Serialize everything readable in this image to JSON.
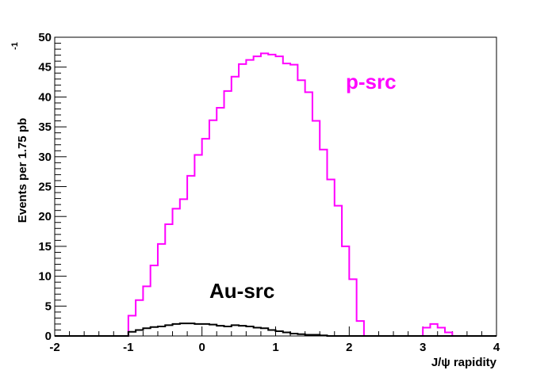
{
  "chart_data": {
    "type": "line",
    "xlabel": "J/ψ rapidity",
    "ylabel": "Events per 1.75 pb",
    "ylabel_superscript": "-1",
    "xlim": [
      -2,
      4
    ],
    "ylim": [
      0,
      50
    ],
    "x_ticks": [
      -2,
      -1,
      0,
      1,
      2,
      3,
      4
    ],
    "y_ticks": [
      0,
      5,
      10,
      15,
      20,
      25,
      30,
      35,
      40,
      45,
      50
    ],
    "bin_width": 0.1,
    "grid": false,
    "series": [
      {
        "name": "p-src",
        "color": "#ff00ff",
        "x_start": -1.0,
        "values": [
          3.4,
          6.0,
          8.3,
          11.8,
          15.4,
          18.7,
          21.3,
          22.9,
          26.8,
          30.3,
          33.0,
          36.1,
          38.2,
          41.0,
          43.4,
          45.5,
          46.2,
          46.8,
          47.3,
          47.1,
          46.8,
          45.6,
          45.4,
          42.8,
          40.8,
          36.0,
          31.2,
          26.2,
          21.8,
          15.0,
          9.5,
          2.5,
          0,
          0,
          0,
          0,
          0,
          0,
          0,
          0,
          1.4,
          2.0,
          1.4,
          0.6
        ]
      },
      {
        "name": "Au-src",
        "color": "#000000",
        "x_start": -1.0,
        "values": [
          0.7,
          1.0,
          1.3,
          1.5,
          1.6,
          1.8,
          2.0,
          2.1,
          2.1,
          2.0,
          2.0,
          1.9,
          1.7,
          1.6,
          1.8,
          1.7,
          1.6,
          1.4,
          1.3,
          1.0,
          0.8,
          0.6,
          0.4,
          0.3,
          0.2,
          0.2,
          0.1,
          0.0
        ]
      }
    ],
    "annotations": [
      {
        "text": "p-src",
        "color": "#ff00ff"
      },
      {
        "text": "Au-src",
        "color": "#000000"
      }
    ]
  }
}
